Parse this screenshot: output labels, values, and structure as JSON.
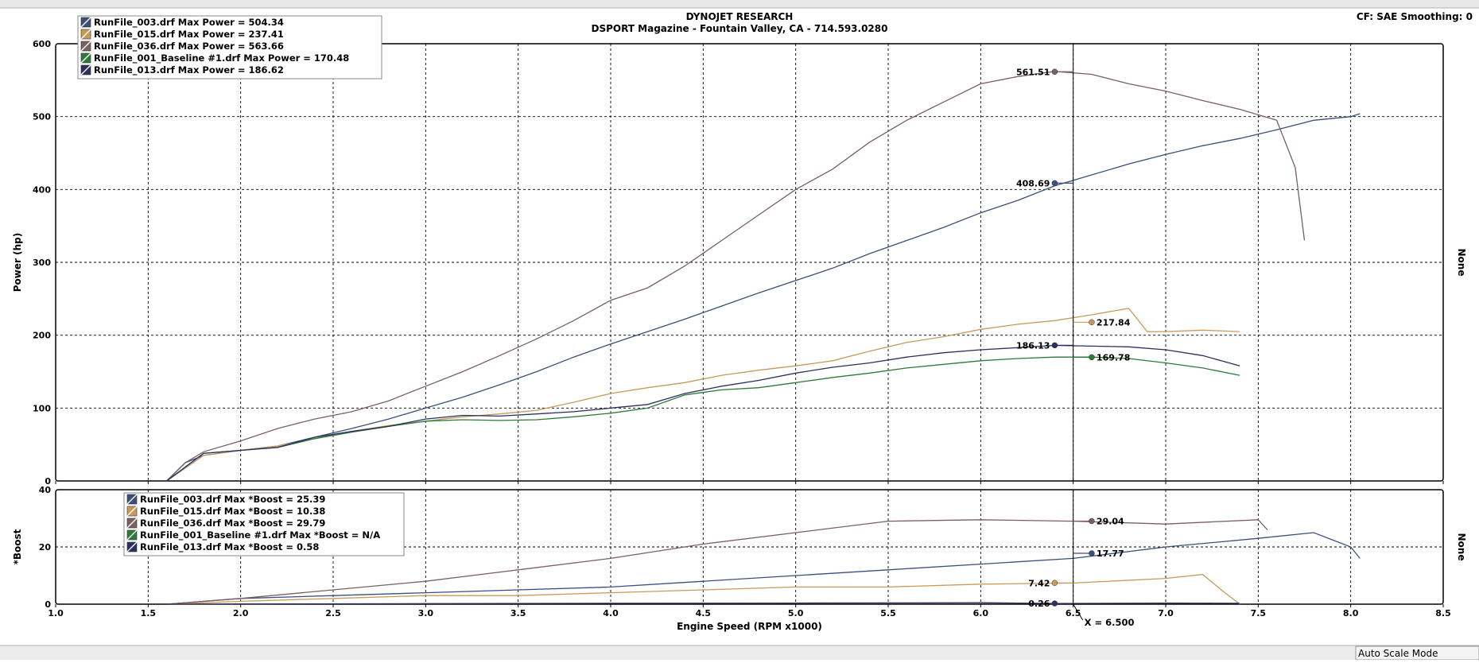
{
  "header": {
    "title_line1": "DYNOJET RESEARCH",
    "title_line2": "DSPORT Magazine - Fountain Valley, CA - 714.593.0280",
    "cf_smoothing": "CF: SAE  Smoothing: 0"
  },
  "status_bar": {
    "mode_label": "Auto Scale Mode"
  },
  "cursor": {
    "x_label": "X = 6.500",
    "x_value": 6.5
  },
  "colors": {
    "run003": "#3a4f7a",
    "run015": "#c89a5a",
    "run036": "#7a6060",
    "run001": "#2d7a3a",
    "run013": "#2a3060",
    "grid": "#000000",
    "frame": "#ffffff"
  },
  "chart_data": [
    {
      "type": "line",
      "ylabel": "Power (hp)",
      "right_label": "None",
      "xlim": [
        1.0,
        8.5
      ],
      "ylim": [
        0,
        600
      ],
      "x_ticks": [
        "1.0",
        "1.5",
        "2.0",
        "2.5",
        "3.0",
        "3.5",
        "4.0",
        "4.5",
        "5.0",
        "5.5",
        "6.0",
        "6.5",
        "7.0",
        "7.5",
        "8.0",
        "8.5"
      ],
      "y_ticks": [
        "0",
        "100",
        "200",
        "300",
        "400",
        "500",
        "600"
      ],
      "legend": [
        "RunFile_003.drf Max Power = 504.34",
        "RunFile_015.drf Max Power = 237.41",
        "RunFile_036.drf Max Power = 563.66",
        "RunFile_001_Baseline #1.drf Max Power = 170.48",
        "RunFile_013.drf Max Power = 186.62"
      ],
      "series": [
        {
          "name": "RunFile_003.drf",
          "color_key": "run003",
          "x": [
            1.6,
            1.7,
            1.8,
            2.0,
            2.2,
            2.4,
            2.6,
            2.8,
            3.0,
            3.2,
            3.4,
            3.6,
            3.8,
            4.0,
            4.2,
            4.4,
            4.6,
            4.8,
            5.0,
            5.2,
            5.4,
            5.6,
            5.8,
            6.0,
            6.2,
            6.4,
            6.6,
            6.8,
            7.0,
            7.2,
            7.4,
            7.6,
            7.8,
            8.0,
            8.05
          ],
          "y": [
            0,
            25,
            35,
            42,
            48,
            60,
            72,
            85,
            100,
            115,
            132,
            150,
            170,
            188,
            205,
            222,
            240,
            258,
            275,
            292,
            312,
            330,
            348,
            368,
            385,
            405,
            420,
            435,
            448,
            460,
            470,
            482,
            495,
            500,
            504
          ]
        },
        {
          "name": "RunFile_015.drf",
          "color_key": "run015",
          "x": [
            1.6,
            1.8,
            2.0,
            2.2,
            2.4,
            2.6,
            2.8,
            3.0,
            3.2,
            3.4,
            3.6,
            3.8,
            4.0,
            4.2,
            4.4,
            4.6,
            4.8,
            5.0,
            5.2,
            5.4,
            5.6,
            5.8,
            6.0,
            6.2,
            6.4,
            6.6,
            6.8,
            6.9,
            7.0,
            7.2,
            7.4
          ],
          "y": [
            0,
            35,
            42,
            48,
            58,
            68,
            76,
            82,
            88,
            92,
            97,
            108,
            120,
            128,
            135,
            145,
            152,
            158,
            165,
            178,
            190,
            198,
            208,
            215,
            220,
            228,
            237,
            205,
            205,
            207,
            205
          ]
        },
        {
          "name": "RunFile_036.drf",
          "color_key": "run036",
          "x": [
            1.6,
            1.7,
            1.8,
            2.0,
            2.2,
            2.4,
            2.6,
            2.8,
            3.0,
            3.2,
            3.4,
            3.6,
            3.8,
            4.0,
            4.2,
            4.4,
            4.6,
            4.8,
            5.0,
            5.2,
            5.4,
            5.6,
            5.8,
            6.0,
            6.2,
            6.4,
            6.6,
            6.8,
            7.0,
            7.2,
            7.4,
            7.6,
            7.7,
            7.75
          ],
          "y": [
            0,
            25,
            40,
            55,
            72,
            85,
            95,
            110,
            130,
            150,
            172,
            195,
            220,
            248,
            265,
            295,
            330,
            365,
            400,
            428,
            465,
            495,
            520,
            545,
            555,
            562,
            558,
            545,
            535,
            522,
            510,
            495,
            430,
            330
          ]
        },
        {
          "name": "RunFile_001_Baseline #1.drf",
          "color_key": "run001",
          "x": [
            1.6,
            1.8,
            2.0,
            2.2,
            2.4,
            2.6,
            2.8,
            3.0,
            3.2,
            3.4,
            3.6,
            3.8,
            4.0,
            4.2,
            4.4,
            4.6,
            4.8,
            5.0,
            5.2,
            5.4,
            5.6,
            5.8,
            6.0,
            6.2,
            6.4,
            6.6,
            6.8,
            7.0,
            7.2,
            7.4
          ],
          "y": [
            0,
            38,
            42,
            46,
            58,
            67,
            75,
            82,
            84,
            83,
            84,
            88,
            93,
            100,
            118,
            125,
            128,
            135,
            142,
            148,
            155,
            160,
            165,
            168,
            170,
            170,
            168,
            162,
            155,
            145
          ]
        },
        {
          "name": "RunFile_013.drf",
          "color_key": "run013",
          "x": [
            1.6,
            1.8,
            2.0,
            2.2,
            2.4,
            2.6,
            2.8,
            3.0,
            3.2,
            3.4,
            3.6,
            3.8,
            4.0,
            4.2,
            4.4,
            4.6,
            4.8,
            5.0,
            5.2,
            5.4,
            5.6,
            5.8,
            6.0,
            6.2,
            6.4,
            6.6,
            6.8,
            7.0,
            7.2,
            7.4
          ],
          "y": [
            0,
            38,
            42,
            46,
            60,
            68,
            75,
            85,
            90,
            89,
            92,
            95,
            100,
            105,
            120,
            130,
            138,
            148,
            156,
            162,
            170,
            176,
            180,
            183,
            186,
            185,
            184,
            180,
            172,
            158
          ]
        }
      ],
      "markers": [
        {
          "x": 6.4,
          "y": 561.51,
          "label": "561.51",
          "color_key": "run036",
          "side": "left"
        },
        {
          "x": 6.4,
          "y": 408.69,
          "label": "408.69",
          "color_key": "run003",
          "side": "left"
        },
        {
          "x": 6.4,
          "y": 186.13,
          "label": "186.13",
          "color_key": "run013",
          "side": "left"
        },
        {
          "x": 6.6,
          "y": 217.84,
          "label": "217.84",
          "color_key": "run015",
          "side": "right"
        },
        {
          "x": 6.6,
          "y": 169.78,
          "label": "169.78",
          "color_key": "run001",
          "side": "right"
        }
      ]
    },
    {
      "type": "line",
      "ylabel": "*Boost",
      "xlabel": "Engine Speed (RPM x1000)",
      "right_label": "None",
      "xlim": [
        1.0,
        8.5
      ],
      "ylim": [
        0,
        40
      ],
      "x_ticks": [
        "1.0",
        "1.5",
        "2.0",
        "2.5",
        "3.0",
        "3.5",
        "4.0",
        "4.5",
        "5.0",
        "5.5",
        "6.0",
        "6.5",
        "7.0",
        "7.5",
        "8.0",
        "8.5"
      ],
      "y_ticks": [
        "0",
        "20",
        "40"
      ],
      "legend": [
        "RunFile_003.drf Max *Boost = 25.39",
        "RunFile_015.drf Max *Boost = 10.38",
        "RunFile_036.drf Max *Boost = 29.79",
        "RunFile_001_Baseline #1.drf Max *Boost = N/A",
        "RunFile_013.drf Max *Boost = 0.58"
      ],
      "series": [
        {
          "name": "RunFile_003.drf",
          "color_key": "run003",
          "x": [
            1.6,
            2.0,
            2.5,
            3.0,
            3.5,
            4.0,
            4.5,
            5.0,
            5.5,
            6.0,
            6.5,
            7.0,
            7.5,
            7.8,
            8.0,
            8.05
          ],
          "y": [
            0,
            2,
            3,
            4,
            5,
            6,
            8,
            10,
            12,
            14,
            16,
            20,
            23,
            25,
            20,
            16
          ]
        },
        {
          "name": "RunFile_015.drf",
          "color_key": "run015",
          "x": [
            1.6,
            2.0,
            2.5,
            3.0,
            3.5,
            4.0,
            4.5,
            5.0,
            5.5,
            6.0,
            6.5,
            7.0,
            7.2,
            7.3,
            7.4
          ],
          "y": [
            0,
            1,
            2,
            3,
            3,
            4,
            5,
            6,
            6,
            7,
            7.4,
            9,
            10.4,
            5,
            0
          ]
        },
        {
          "name": "RunFile_036.drf",
          "color_key": "run036",
          "x": [
            1.6,
            2.0,
            2.5,
            3.0,
            3.5,
            4.0,
            4.5,
            5.0,
            5.5,
            6.0,
            6.5,
            7.0,
            7.5,
            7.55
          ],
          "y": [
            0,
            2,
            5,
            8,
            12,
            16,
            21,
            25,
            29,
            29.5,
            29,
            28,
            29.5,
            26
          ]
        },
        {
          "name": "RunFile_013.drf",
          "color_key": "run013",
          "x": [
            1.6,
            3.0,
            4.0,
            5.0,
            6.0,
            6.4,
            7.0,
            7.4
          ],
          "y": [
            0,
            0.2,
            0.3,
            0.4,
            0.5,
            0.26,
            0.4,
            0.3
          ]
        }
      ],
      "markers": [
        {
          "x": 6.6,
          "y": 29.04,
          "label": "29.04",
          "color_key": "run036",
          "side": "right"
        },
        {
          "x": 6.6,
          "y": 17.77,
          "label": "17.77",
          "color_key": "run003",
          "side": "right"
        },
        {
          "x": 6.4,
          "y": 7.42,
          "label": "7.42",
          "color_key": "run015",
          "side": "left"
        },
        {
          "x": 6.4,
          "y": 0.26,
          "label": "0.26",
          "color_key": "run013",
          "side": "left"
        }
      ]
    }
  ]
}
